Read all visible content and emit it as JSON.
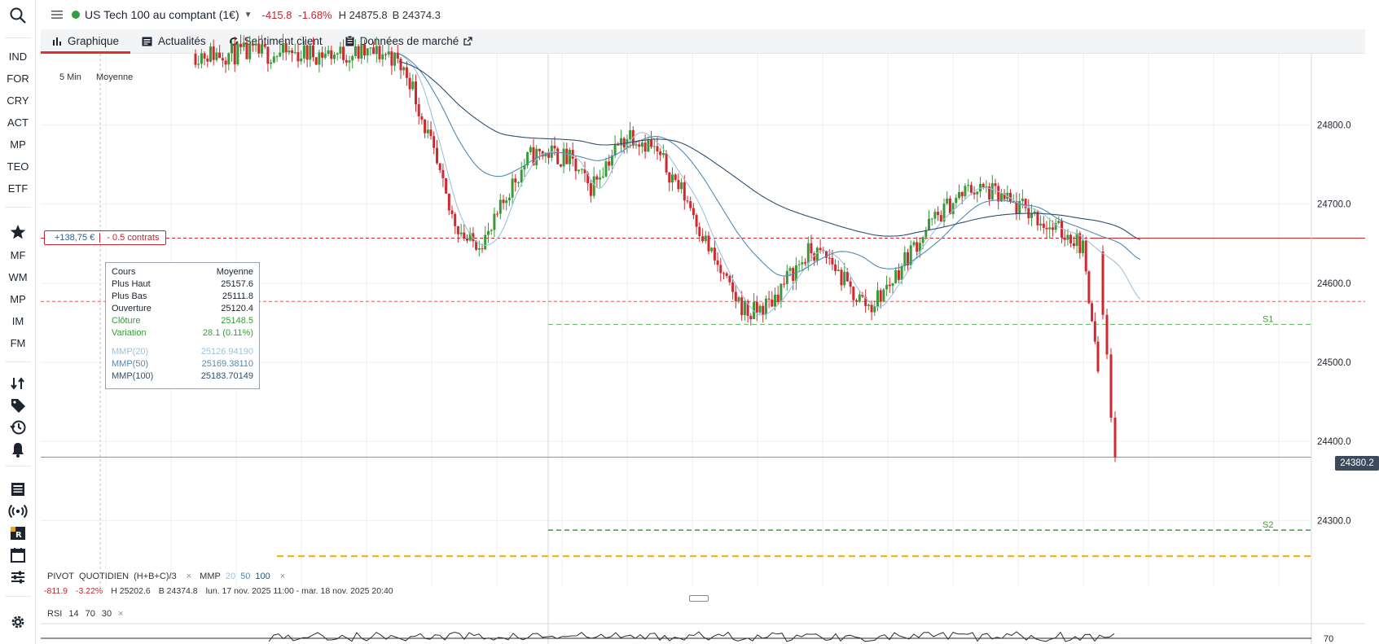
{
  "sidebar": {
    "search_icon": "search-icon",
    "markets": [
      "IND",
      "FOR",
      "CRY",
      "ACT",
      "MP",
      "TEO",
      "ETF"
    ],
    "star_icon": "star-icon",
    "lists": [
      "MF",
      "WM",
      "MP",
      "IM",
      "FM"
    ],
    "tools": [
      "transfer-icon",
      "tag-icon",
      "history-icon",
      "bell-icon",
      "news-icon",
      "broadcast-icon",
      "tr-logo-icon",
      "calendar-icon",
      "sliders-icon",
      "gear-icon"
    ]
  },
  "header": {
    "instrument": "US Tech 100 au comptant (1€)",
    "change": "-415.8",
    "change_pct": "-1.68%",
    "high": "H 24875.8",
    "low": "B 24374.3",
    "status_color": "#2ea043"
  },
  "tabs": [
    {
      "label": "Graphique",
      "icon": "chart-icon",
      "active": true
    },
    {
      "label": "Actualités",
      "icon": "news-icon"
    },
    {
      "label": "Sentiment client",
      "icon": "refresh-icon"
    },
    {
      "label": "Données de marché",
      "icon": "clipboard-icon",
      "external": true
    }
  ],
  "chart": {
    "timeframe": "5 Min",
    "chart_type": "Moyenne",
    "position": {
      "pnl": "+138,75 €",
      "contracts": "- 0.5 contrats"
    },
    "price_tag": "24380.2",
    "tooltip": {
      "title": "Cours",
      "title_right": "Moyenne",
      "rows": [
        {
          "label": "Plus Haut",
          "value": "25157.6"
        },
        {
          "label": "Plus Bas",
          "value": "25111.8"
        },
        {
          "label": "Ouverture",
          "value": "25120.4"
        },
        {
          "label": "Clôture",
          "value": "25148.5"
        },
        {
          "label": "Variation",
          "value": "28.1 (0.11%)"
        }
      ],
      "mas": [
        {
          "label": "MMP(20)",
          "value": "25126.94190"
        },
        {
          "label": "MMP(50)",
          "value": "25169.38110"
        },
        {
          "label": "MMP(100)",
          "value": "25183.70149"
        }
      ]
    },
    "y_ticks": [
      "24800.0",
      "24700.0",
      "24600.0",
      "24500.0",
      "24400.0",
      "24300.0"
    ],
    "pivot_labels": {
      "s1": "S1",
      "s2": "S2"
    },
    "colors": {
      "up": "#3a9a3a",
      "down": "#d0282e",
      "ma20": "#9ec3dc",
      "ma50": "#4f8bb5",
      "ma100": "#2f4f72"
    }
  },
  "legend": {
    "pivot": "PIVOT",
    "period": "QUOTIDIEN",
    "formula": "(H+B+C)/3",
    "mmp": "MMP",
    "p20": "20",
    "p50": "50",
    "p100": "100",
    "close": "×"
  },
  "subinfo": {
    "change": "-811.9",
    "pct": "-3.22%",
    "high": "H 25202.6",
    "low": "B 24374.8",
    "range": "lun. 17 nov. 2025 11:00 - mar. 18 nov. 2025 20:40"
  },
  "rsi": {
    "label": "RSI",
    "p1": "14",
    "p2": "70",
    "p3": "30",
    "close": "×",
    "level": "70"
  },
  "chart_data": {
    "type": "candlestick",
    "ylim": [
      24250,
      24890
    ],
    "last_price": 24380.2,
    "levels": {
      "position_entry": 24657,
      "red_line": 24577,
      "s1": 24548,
      "s2": 24288,
      "yellow": 24255
    },
    "series": [
      {
        "name": "MMP(20)",
        "values": [
          24890,
          24860,
          24780,
          24690,
          24650,
          24660,
          24720,
          24760,
          24765,
          24755,
          24720,
          24760,
          24790,
          24775,
          24740,
          24700,
          24640,
          24590,
          24560,
          24575,
          24610,
          24640,
          24630,
          24590,
          24570,
          24600,
          24640,
          24675,
          24700,
          24720,
          24715,
          24700,
          24690,
          24670,
          24660,
          24640,
          24620,
          24580
        ]
      },
      {
        "name": "MMP(50)",
        "values": [
          24890,
          24870,
          24830,
          24780,
          24745,
          24735,
          24745,
          24760,
          24765,
          24760,
          24755,
          24765,
          24780,
          24785,
          24770,
          24740,
          24700,
          24660,
          24630,
          24610,
          24615,
          24630,
          24640,
          24635,
          24620,
          24620,
          24635,
          24655,
          24680,
          24700,
          24705,
          24700,
          24695,
          24680,
          24670,
          24660,
          24650,
          24630
        ]
      },
      {
        "name": "MMP(100)",
        "values": [
          24880,
          24870,
          24850,
          24825,
          24805,
          24790,
          24785,
          24783,
          24782,
          24780,
          24775,
          24776,
          24780,
          24782,
          24778,
          24765,
          24748,
          24730,
          24712,
          24698,
          24688,
          24680,
          24672,
          24665,
          24660,
          24660,
          24665,
          24670,
          24676,
          24682,
          24686,
          24688,
          24688,
          24686,
          24682,
          24678,
          24670,
          24655
        ]
      }
    ]
  }
}
